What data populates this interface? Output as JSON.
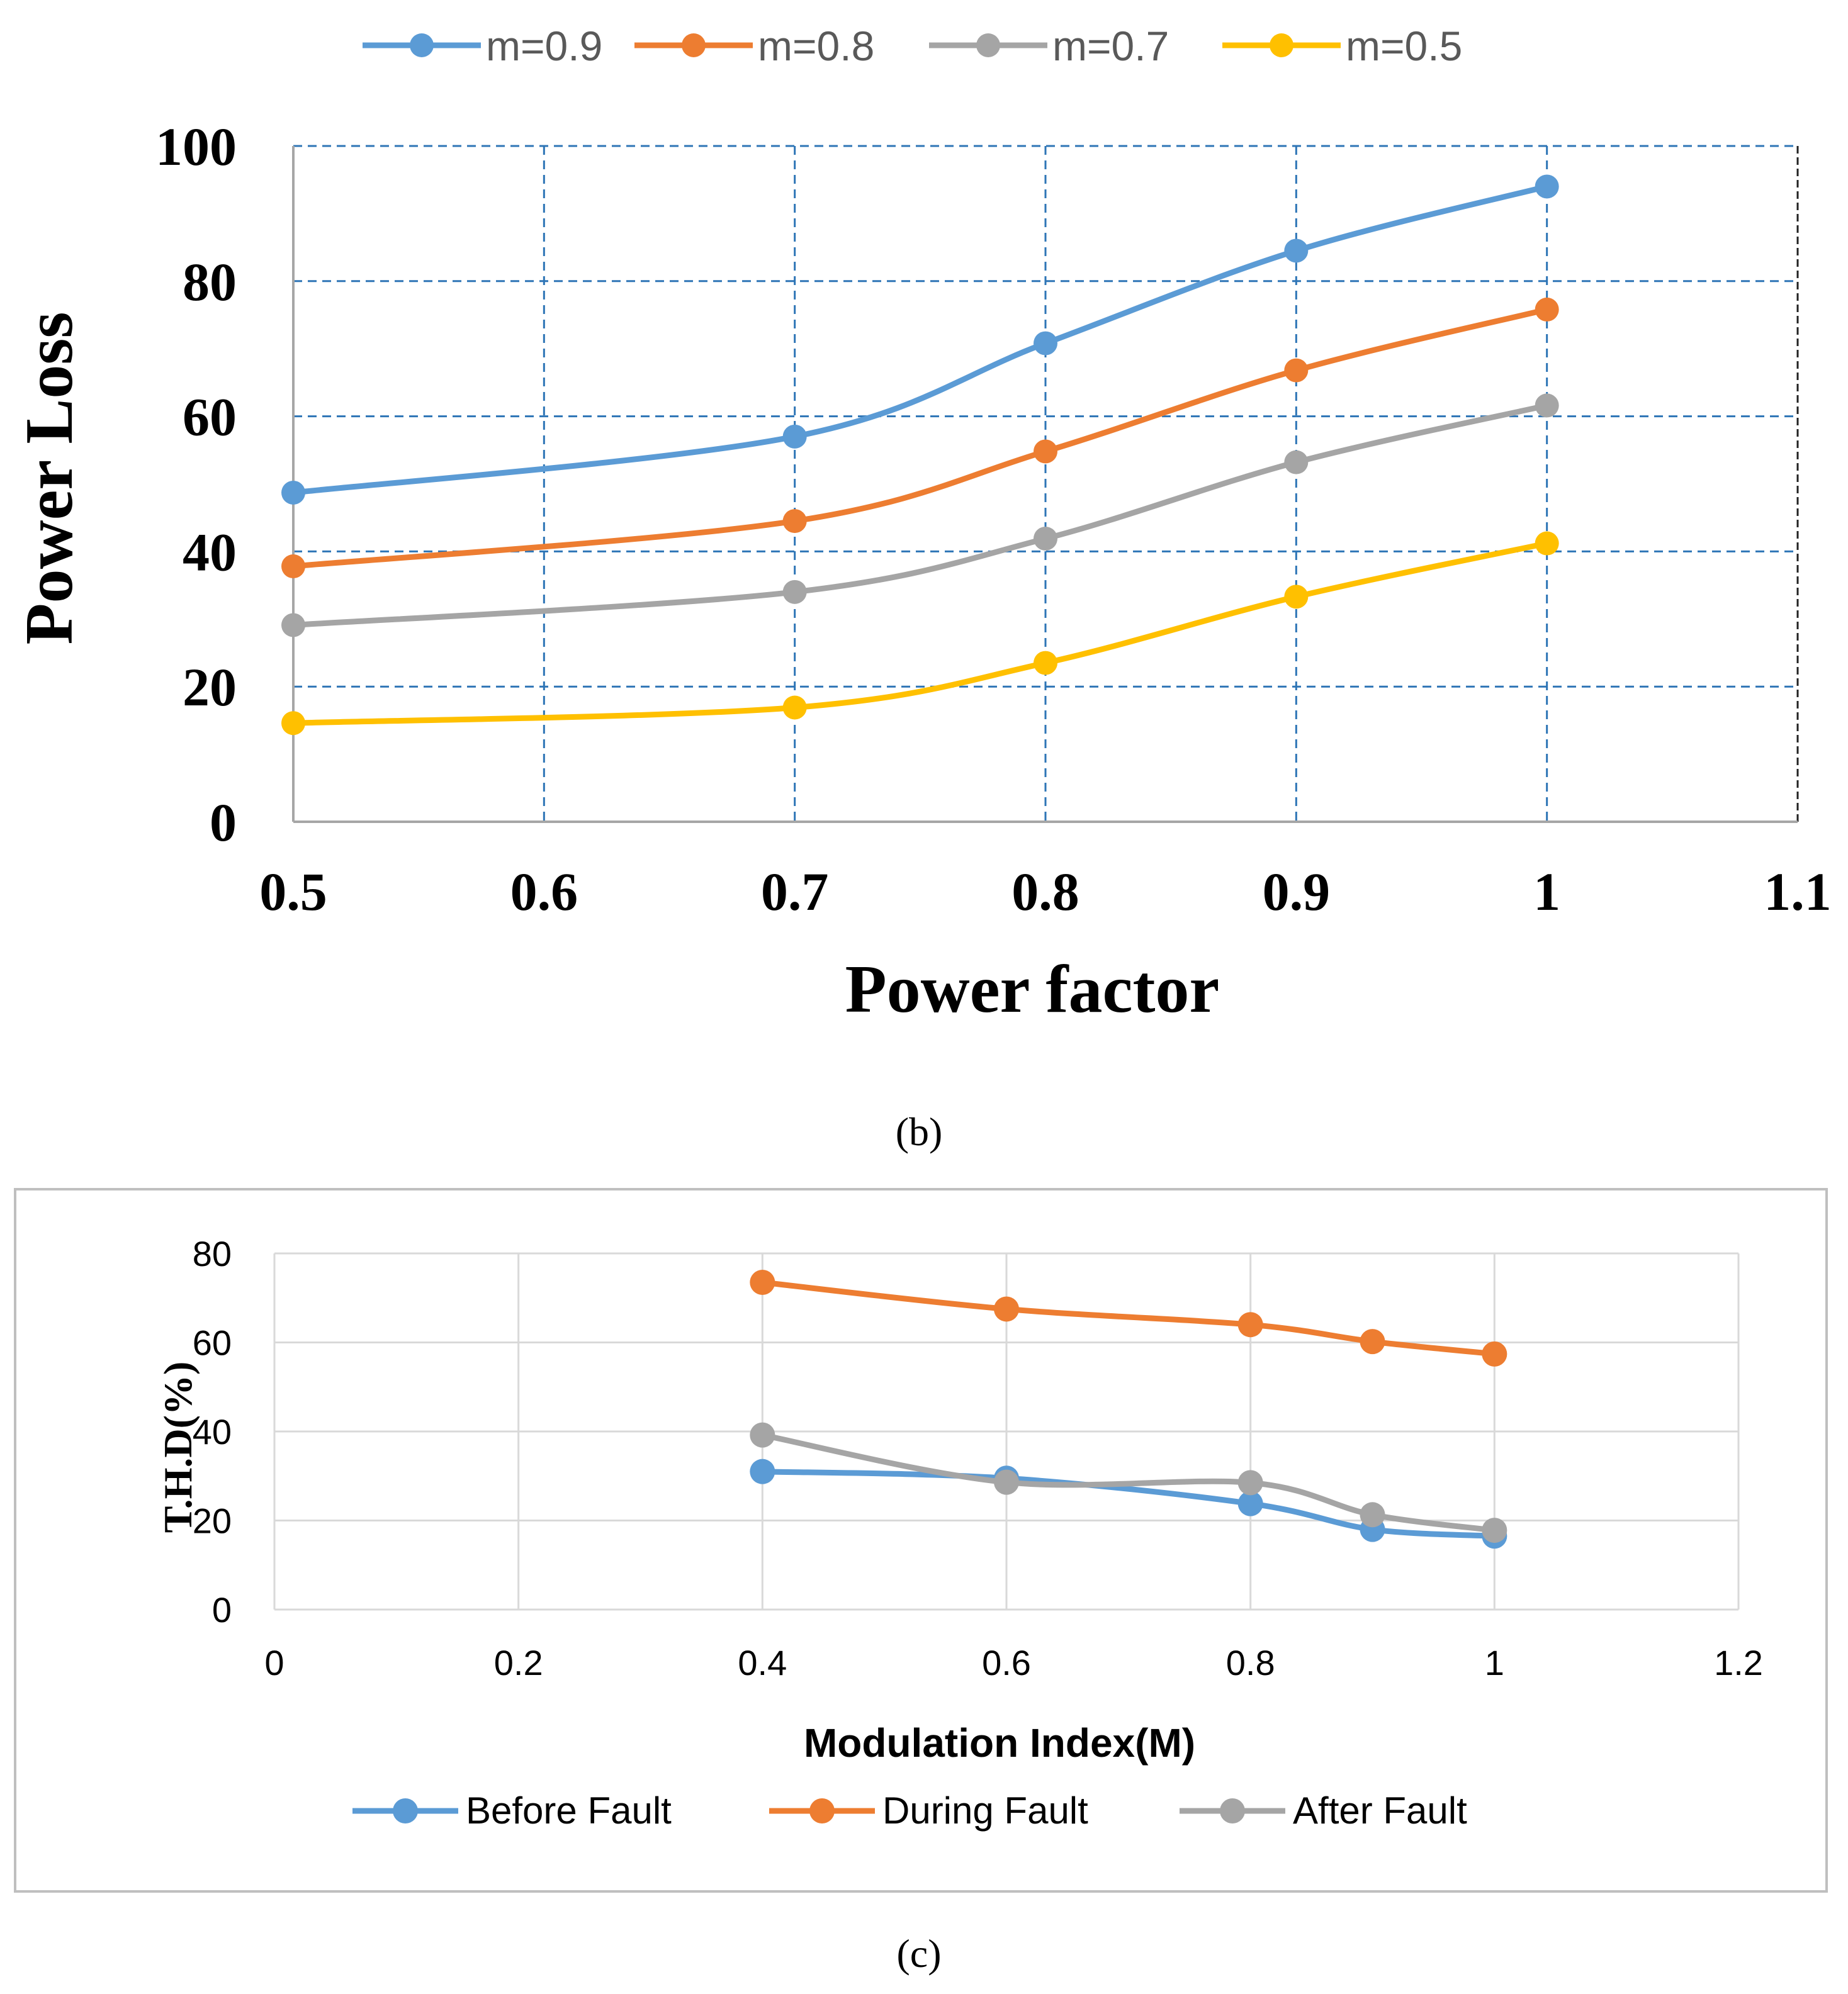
{
  "colors": {
    "blue": "#5B9BD5",
    "orange": "#ED7D31",
    "gray": "#A5A5A5",
    "yellow": "#FFC000",
    "grid_b": "#2E75B6",
    "grid_c": "#D9D9D9",
    "frame_c": "#BFBFBF"
  },
  "captions": {
    "b": "(b)",
    "c": "(c)"
  },
  "chart_data": [
    {
      "type": "line",
      "panel": "b",
      "title": "",
      "xlabel": "Power factor",
      "ylabel": "Power Loss",
      "xlim": [
        0.5,
        1.1
      ],
      "ylim": [
        0,
        100
      ],
      "xticks": [
        "0.5",
        "0.6",
        "0.7",
        "0.8",
        "0.9",
        "1",
        "1.1"
      ],
      "yticks": [
        "0",
        "20",
        "40",
        "60",
        "80",
        "100"
      ],
      "x": [
        0.5,
        0.7,
        0.8,
        0.9,
        1.0
      ],
      "grid": true,
      "legend_position": "top",
      "series": [
        {
          "name": "m=0.9",
          "color_key": "blue",
          "values": [
            48.7,
            57.0,
            70.8,
            84.5,
            94.0
          ]
        },
        {
          "name": "m=0.8",
          "color_key": "orange",
          "values": [
            37.8,
            44.5,
            54.8,
            66.8,
            75.8
          ]
        },
        {
          "name": "m=0.7",
          "color_key": "gray",
          "values": [
            29.1,
            34.0,
            41.9,
            53.2,
            61.6
          ]
        },
        {
          "name": "m=0.5",
          "color_key": "yellow",
          "values": [
            14.6,
            16.9,
            23.5,
            33.3,
            41.2
          ]
        }
      ]
    },
    {
      "type": "line",
      "panel": "c",
      "title": "",
      "xlabel": "Modulation Index(M)",
      "ylabel": "T.H.D(%)",
      "xlim": [
        0,
        1.2
      ],
      "ylim": [
        0,
        80
      ],
      "xticks": [
        "0",
        "0.2",
        "0.4",
        "0.6",
        "0.8",
        "1",
        "1.2"
      ],
      "yticks": [
        "0",
        "20",
        "40",
        "60",
        "80"
      ],
      "x": [
        0.4,
        0.6,
        0.8,
        0.9,
        1.0
      ],
      "grid": true,
      "legend_position": "bottom",
      "series": [
        {
          "name": "Before Fault",
          "color_key": "blue",
          "values": [
            31.0,
            29.5,
            23.8,
            18.0,
            16.5
          ]
        },
        {
          "name": "During Fault",
          "color_key": "orange",
          "values": [
            73.5,
            67.5,
            64.0,
            60.2,
            57.4
          ]
        },
        {
          "name": "After Fault",
          "color_key": "gray",
          "values": [
            39.2,
            28.6,
            28.5,
            21.3,
            17.8
          ]
        }
      ]
    }
  ]
}
